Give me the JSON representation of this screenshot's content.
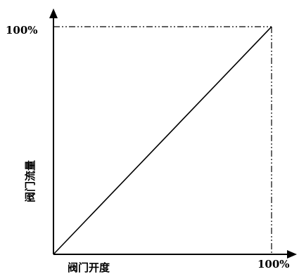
{
  "chart_data": {
    "type": "line",
    "xlabel": "阀门开度",
    "ylabel": "阀门流量",
    "x_max_label": "100%",
    "y_max_label": "100%",
    "xlim": [
      0,
      100
    ],
    "ylim": [
      0,
      100
    ],
    "grid": false,
    "series": [
      {
        "x": [
          0,
          100
        ],
        "values": [
          0,
          100
        ]
      }
    ],
    "colors": {
      "line": "#000000",
      "axis": "#000000",
      "background": "#ffffff"
    }
  }
}
